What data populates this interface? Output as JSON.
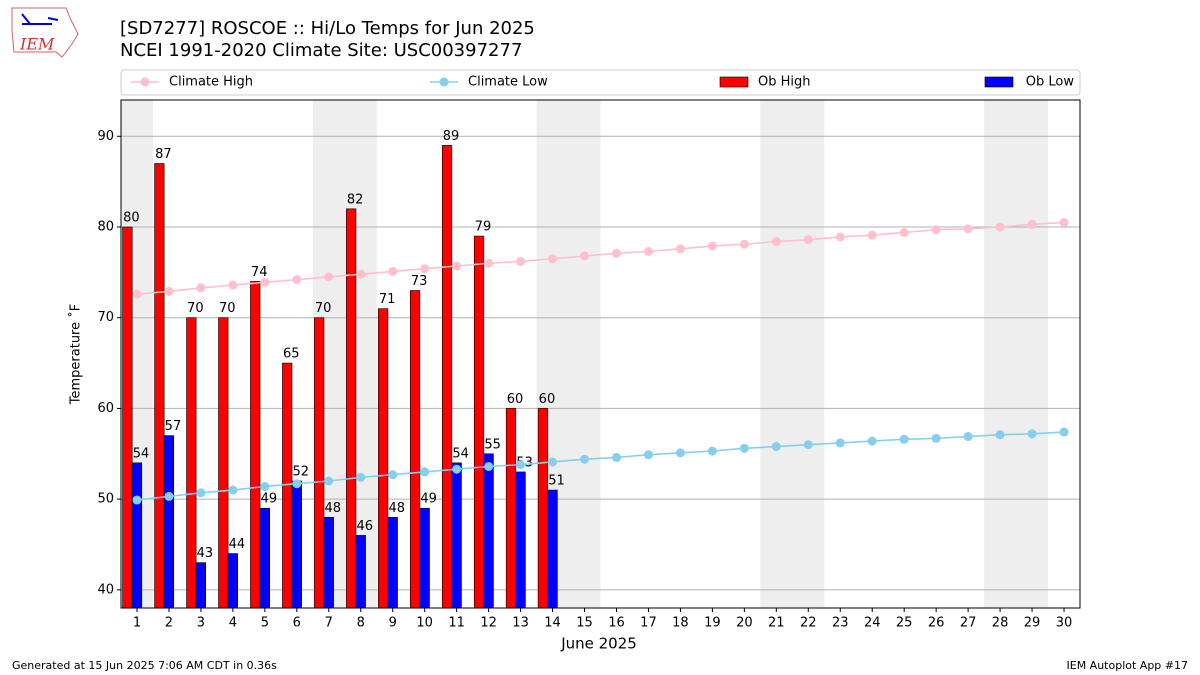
{
  "logo": "IEM",
  "footer_left": "Generated at 15 Jun 2025 7:06 AM CDT in 0.36s",
  "footer_right": "IEM Autoplot App #17",
  "chart_data": {
    "type": "bar",
    "title": "[SD7277] ROSCOE :: Hi/Lo Temps for Jun 2025",
    "subtitle": "NCEI 1991-2020 Climate Site: USC00397277",
    "x_label": "June 2025",
    "y_label": "Temperature ˚F",
    "x": [
      1,
      2,
      3,
      4,
      5,
      6,
      7,
      8,
      9,
      10,
      11,
      12,
      13,
      14,
      15,
      16,
      17,
      18,
      19,
      20,
      21,
      22,
      23,
      24,
      25,
      26,
      27,
      28,
      29,
      30
    ],
    "xlim": [
      0.5,
      30.5
    ],
    "xticks": [
      1,
      2,
      3,
      4,
      5,
      6,
      7,
      8,
      9,
      10,
      11,
      12,
      13,
      14,
      15,
      16,
      17,
      18,
      19,
      20,
      21,
      22,
      23,
      24,
      25,
      26,
      27,
      28,
      29,
      30
    ],
    "ylim": [
      38,
      94
    ],
    "yticks": [
      40,
      50,
      60,
      70,
      80,
      90
    ],
    "grid": true,
    "legend": "top",
    "shaded_ranges": [
      [
        0.5,
        1.5
      ],
      [
        6.5,
        8.5
      ],
      [
        13.5,
        15.5
      ],
      [
        20.5,
        22.5
      ],
      [
        27.5,
        29.5
      ]
    ],
    "series": [
      {
        "name": "Climate High",
        "type": "line",
        "color": "#ffc0cb",
        "values": [
          72.6,
          72.9,
          73.3,
          73.6,
          73.9,
          74.2,
          74.5,
          74.8,
          75.1,
          75.4,
          75.7,
          76.0,
          76.2,
          76.5,
          76.8,
          77.1,
          77.3,
          77.6,
          77.9,
          78.1,
          78.4,
          78.6,
          78.9,
          79.1,
          79.4,
          79.7,
          79.8,
          80.0,
          80.3,
          80.5
        ]
      },
      {
        "name": "Climate Low",
        "type": "line",
        "color": "#87ceeb",
        "values": [
          49.9,
          50.3,
          50.7,
          51.0,
          51.4,
          51.7,
          52.0,
          52.4,
          52.7,
          53.0,
          53.3,
          53.6,
          53.8,
          54.1,
          54.4,
          54.6,
          54.9,
          55.1,
          55.3,
          55.6,
          55.8,
          56.0,
          56.2,
          56.4,
          56.6,
          56.7,
          56.9,
          57.1,
          57.2,
          57.4
        ]
      },
      {
        "name": "Ob High",
        "type": "bar",
        "color": "#ff0000",
        "values": [
          80,
          87,
          70,
          70,
          74,
          65,
          70,
          82,
          71,
          73,
          89,
          79,
          60,
          60,
          null,
          null,
          null,
          null,
          null,
          null,
          null,
          null,
          null,
          null,
          null,
          null,
          null,
          null,
          null,
          null
        ]
      },
      {
        "name": "Ob Low",
        "type": "bar",
        "color": "#0000ff",
        "values": [
          54,
          57,
          43,
          44,
          49,
          52,
          48,
          46,
          48,
          49,
          54,
          55,
          53,
          51,
          null,
          null,
          null,
          null,
          null,
          null,
          null,
          null,
          null,
          null,
          null,
          null,
          null,
          null,
          null,
          null
        ]
      }
    ]
  }
}
